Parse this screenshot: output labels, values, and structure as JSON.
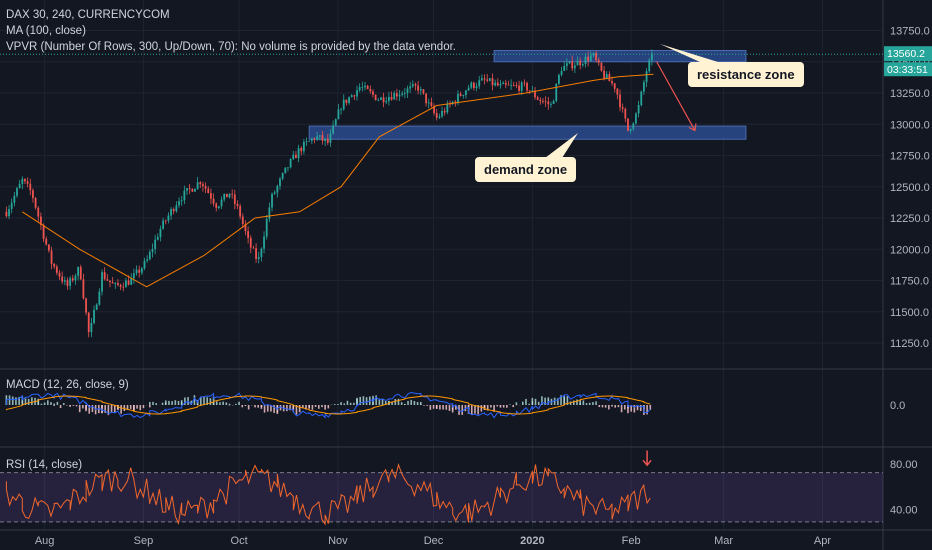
{
  "header": {
    "title": "DAX 30, 240, CURRENCYCOM",
    "ma_label": "MA (100, close)",
    "vpvr_label": "VPVR (Number Of Rows, 300, Up/Down, 70): No volume is provided by the data vendor."
  },
  "price_badge": {
    "price": "13560.2",
    "countdown": "03:33:51"
  },
  "annotations": {
    "resistance": "resistance zone",
    "demand": "demand zone"
  },
  "colors": {
    "background": "#131722",
    "up": "#26a69a",
    "down": "#ef5350",
    "ma": "#f57c00",
    "zone": "#2a4b8d",
    "rsi": "#f2672c",
    "macd": "#2962ff",
    "signal": "#ff9800",
    "price_badge": "#26a69a",
    "arrow": "#ef5350"
  },
  "chart_data": [
    {
      "type": "candlestick",
      "title": "DAX 30, 240, CURRENCYCOM",
      "x_ticks": [
        "Aug",
        "Sep",
        "Oct",
        "Nov",
        "Dec",
        "2020",
        "Feb",
        "Mar",
        "Apr"
      ],
      "y_ticks": [
        11250,
        11500,
        11750,
        12000,
        12250,
        12500,
        12750,
        13000,
        13250,
        13500,
        13750
      ],
      "ylim": [
        11050,
        13850
      ],
      "close_path": [
        {
          "date": "2019-07-20",
          "close": 12300
        },
        {
          "date": "2019-07-25",
          "close": 12550
        },
        {
          "date": "2019-07-28",
          "close": 12450
        },
        {
          "date": "2019-08-03",
          "close": 11900
        },
        {
          "date": "2019-08-08",
          "close": 11700
        },
        {
          "date": "2019-08-12",
          "close": 11850
        },
        {
          "date": "2019-08-15",
          "close": 11300
        },
        {
          "date": "2019-08-19",
          "close": 11800
        },
        {
          "date": "2019-08-23",
          "close": 11700
        },
        {
          "date": "2019-08-28",
          "close": 11750
        },
        {
          "date": "2019-09-02",
          "close": 11900
        },
        {
          "date": "2019-09-06",
          "close": 12150
        },
        {
          "date": "2019-09-12",
          "close": 12400
        },
        {
          "date": "2019-09-19",
          "close": 12550
        },
        {
          "date": "2019-09-24",
          "close": 12350
        },
        {
          "date": "2019-09-28",
          "close": 12450
        },
        {
          "date": "2019-10-01",
          "close": 12300
        },
        {
          "date": "2019-10-04",
          "close": 12050
        },
        {
          "date": "2019-10-07",
          "close": 11900
        },
        {
          "date": "2019-10-11",
          "close": 12400
        },
        {
          "date": "2019-10-16",
          "close": 12650
        },
        {
          "date": "2019-10-20",
          "close": 12800
        },
        {
          "date": "2019-10-25",
          "close": 12900
        },
        {
          "date": "2019-10-29",
          "close": 12850
        },
        {
          "date": "2019-11-02",
          "close": 13150
        },
        {
          "date": "2019-11-08",
          "close": 13300
        },
        {
          "date": "2019-11-14",
          "close": 13200
        },
        {
          "date": "2019-11-20",
          "close": 13250
        },
        {
          "date": "2019-11-26",
          "close": 13300
        },
        {
          "date": "2019-12-02",
          "close": 13050
        },
        {
          "date": "2019-12-06",
          "close": 13150
        },
        {
          "date": "2019-12-12",
          "close": 13300
        },
        {
          "date": "2019-12-17",
          "close": 13350
        },
        {
          "date": "2019-12-22",
          "close": 13300
        },
        {
          "date": "2019-12-30",
          "close": 13300
        },
        {
          "date": "2020-01-03",
          "close": 13200
        },
        {
          "date": "2020-01-07",
          "close": 13150
        },
        {
          "date": "2020-01-10",
          "close": 13450
        },
        {
          "date": "2020-01-16",
          "close": 13500
        },
        {
          "date": "2020-01-20",
          "close": 13550
        },
        {
          "date": "2020-01-23",
          "close": 13400
        },
        {
          "date": "2020-01-27",
          "close": 13300
        },
        {
          "date": "2020-01-31",
          "close": 12950
        },
        {
          "date": "2020-02-03",
          "close": 13100
        },
        {
          "date": "2020-02-06",
          "close": 13450
        },
        {
          "date": "2020-02-08",
          "close": 13560.2
        }
      ],
      "ma100_path": [
        {
          "date": "2019-07-25",
          "value": 12300
        },
        {
          "date": "2019-08-12",
          "value": 12000
        },
        {
          "date": "2019-09-02",
          "value": 11700
        },
        {
          "date": "2019-09-20",
          "value": 11950
        },
        {
          "date": "2019-10-06",
          "value": 12250
        },
        {
          "date": "2019-10-20",
          "value": 12300
        },
        {
          "date": "2019-11-02",
          "value": 12500
        },
        {
          "date": "2019-11-14",
          "value": 12900
        },
        {
          "date": "2019-12-02",
          "value": 13150
        },
        {
          "date": "2019-12-30",
          "value": 13250
        },
        {
          "date": "2020-01-20",
          "value": 13350
        },
        {
          "date": "2020-01-28",
          "value": 13380
        },
        {
          "date": "2020-02-08",
          "value": 13400
        }
      ],
      "zones": [
        {
          "label": "resistance zone",
          "start": "2019-12-20",
          "end": "2020-03-08",
          "low": 13500,
          "high": 13590
        },
        {
          "label": "demand zone",
          "start": "2019-10-23",
          "end": "2020-03-08",
          "low": 12880,
          "high": 12985
        }
      ],
      "projection": {
        "from": {
          "date": "2020-02-09",
          "value": 13500
        },
        "to": {
          "date": "2020-02-21",
          "value": 12950
        }
      },
      "last_price": 13560.2
    },
    {
      "type": "line",
      "title": "MACD (12, 26, close, 9)",
      "y_ticks": [
        0.0
      ]
    },
    {
      "type": "line",
      "title": "RSI (14, close)",
      "y_ticks": [
        40.0,
        80.0
      ],
      "levels": [
        30,
        70
      ],
      "ylim": [
        25,
        90
      ]
    }
  ]
}
